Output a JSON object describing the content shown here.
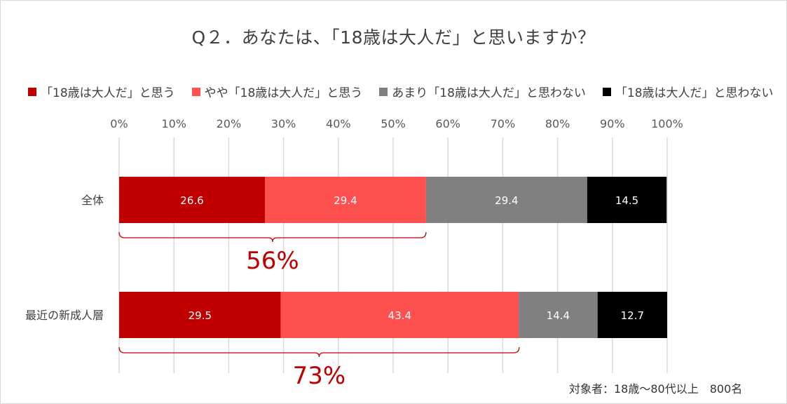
{
  "title": "Q２．あなたは、「18歳は大人だ」と思いますか？",
  "note": "対象者：18歳～80代以上　800名",
  "colors": {
    "series": [
      "#C00000",
      "#FF5050",
      "#808080",
      "#000000"
    ],
    "grid": "#d9d9d9",
    "bracket": "#C00000",
    "sum_text": "#C00000"
  },
  "chart_data": {
    "type": "bar",
    "orientation": "horizontal",
    "stacked": true,
    "xlim": [
      0,
      100
    ],
    "x_ticks": [
      "0%",
      "10%",
      "20%",
      "30%",
      "40%",
      "50%",
      "60%",
      "70%",
      "80%",
      "90%",
      "100%"
    ],
    "categories": [
      "全体",
      "最近の新成人層"
    ],
    "series": [
      {
        "name": "「18歳は大人だ」と思う",
        "values": [
          26.6,
          29.5
        ],
        "labels": [
          "26.6",
          "29.5"
        ]
      },
      {
        "name": "やや「18歳は大人だ」と思う",
        "values": [
          29.4,
          43.4
        ],
        "labels": [
          "29.4",
          "43.4"
        ]
      },
      {
        "name": "あまり「18歳は大人だ」と思わない",
        "values": [
          29.4,
          14.4
        ],
        "labels": [
          "29.4",
          "14.4"
        ]
      },
      {
        "name": "「18歳は大人だ」と思わない",
        "values": [
          14.5,
          12.7
        ],
        "labels": [
          "14.5",
          "12.7"
        ]
      }
    ],
    "annotations": [
      {
        "category": "全体",
        "span": [
          0,
          56
        ],
        "text": "56%"
      },
      {
        "category": "最近の新成人層",
        "span": [
          0,
          73
        ],
        "text": "73%"
      }
    ],
    "grid": true,
    "legend": "top"
  }
}
